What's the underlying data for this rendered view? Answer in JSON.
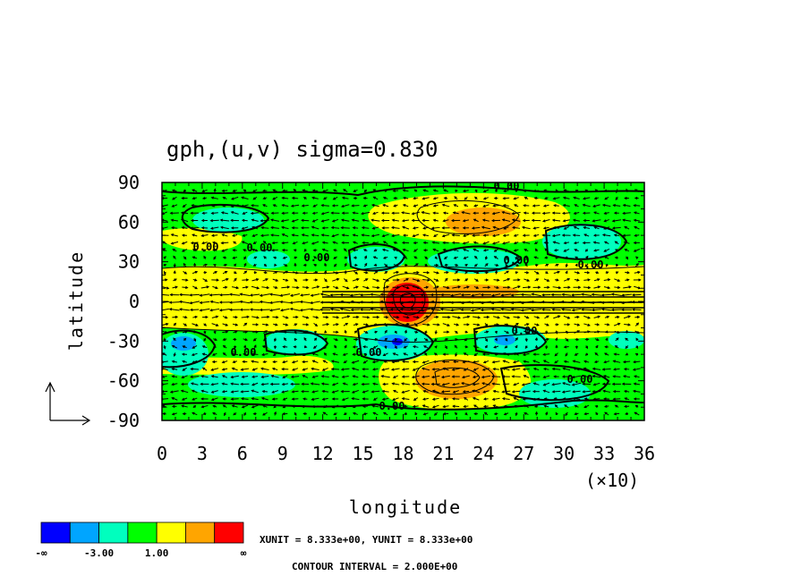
{
  "chart_data": {
    "type": "heatmap",
    "title": "gph,(u,v) sigma=0.830",
    "xlabel": "longitude",
    "ylabel": "latitude",
    "x_tick_labels": [
      "0",
      "3",
      "6",
      "9",
      "12",
      "15",
      "18",
      "21",
      "24",
      "27",
      "30",
      "33",
      "36"
    ],
    "x_multiplier_label": "(×10)",
    "y_tick_labels": [
      "90",
      "60",
      "30",
      "0",
      "-30",
      "-60",
      "-90"
    ],
    "xlim": [
      0,
      360
    ],
    "ylim": [
      -90,
      90
    ],
    "colorbar": {
      "colors": [
        "#0000ff",
        "#00a5ff",
        "#00ffbe",
        "#00ff00",
        "#ffff00",
        "#ffa500",
        "#ff0000"
      ],
      "labels": [
        "-∞",
        "-3.00",
        "1.00",
        "∞"
      ]
    },
    "contour_labels": [
      "0.00",
      "0.00",
      "0.00",
      "0.00",
      "0.00",
      "0.00",
      "0.00",
      "0.00",
      "0.00",
      "0.00",
      "0.00"
    ],
    "vector_note": "XUNIT = 8.333e+00, YUNIT = 8.333e+00",
    "contour_note": "CONTOUR INTERVAL = 2.000E+00",
    "features": [
      {
        "lon": 180,
        "lat": 0,
        "level": 6
      },
      {
        "lon": 222,
        "lat": -58,
        "level": 5
      },
      {
        "lon": 228,
        "lat": 66,
        "level": 5
      },
      {
        "lon": 175,
        "lat": -32,
        "level": 1
      },
      {
        "lon": 12,
        "lat": -30,
        "level": 1
      },
      {
        "lon": 255,
        "lat": -30,
        "level": 1
      }
    ]
  }
}
